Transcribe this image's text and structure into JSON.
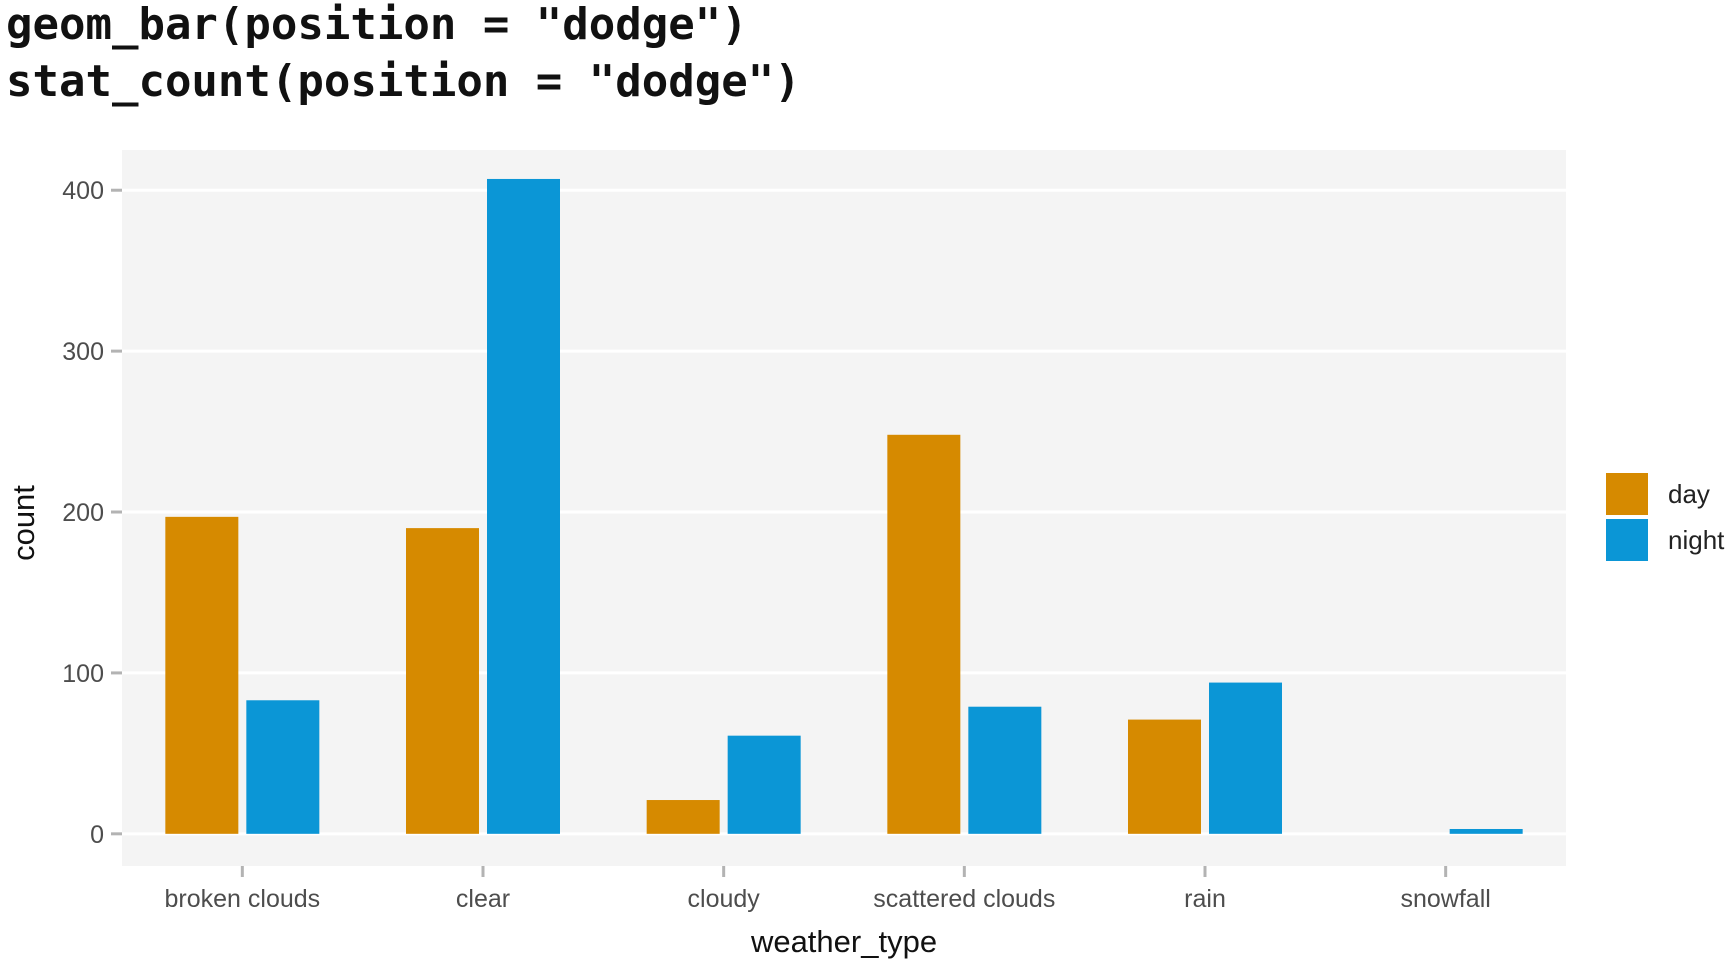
{
  "title_lines": [
    "geom_bar(position = \"dodge\")",
    "stat_count(position = \"dodge\")"
  ],
  "chart_data": {
    "type": "bar",
    "categories": [
      "broken clouds",
      "clear",
      "cloudy",
      "scattered clouds",
      "rain",
      "snowfall"
    ],
    "series": [
      {
        "name": "day",
        "color": "#D68A00",
        "values": [
          197,
          190,
          21,
          248,
          71,
          0
        ]
      },
      {
        "name": "night",
        "color": "#0B96D6",
        "values": [
          83,
          407,
          61,
          79,
          94,
          3
        ]
      }
    ],
    "xlabel": "weather_type",
    "ylabel": "count",
    "ylim": [
      -20,
      425
    ],
    "yticks": [
      0,
      100,
      200,
      300,
      400
    ],
    "grid": true,
    "legend_position": "right",
    "panel_background": "#F4F4F4",
    "grid_color": "#FFFFFF"
  }
}
